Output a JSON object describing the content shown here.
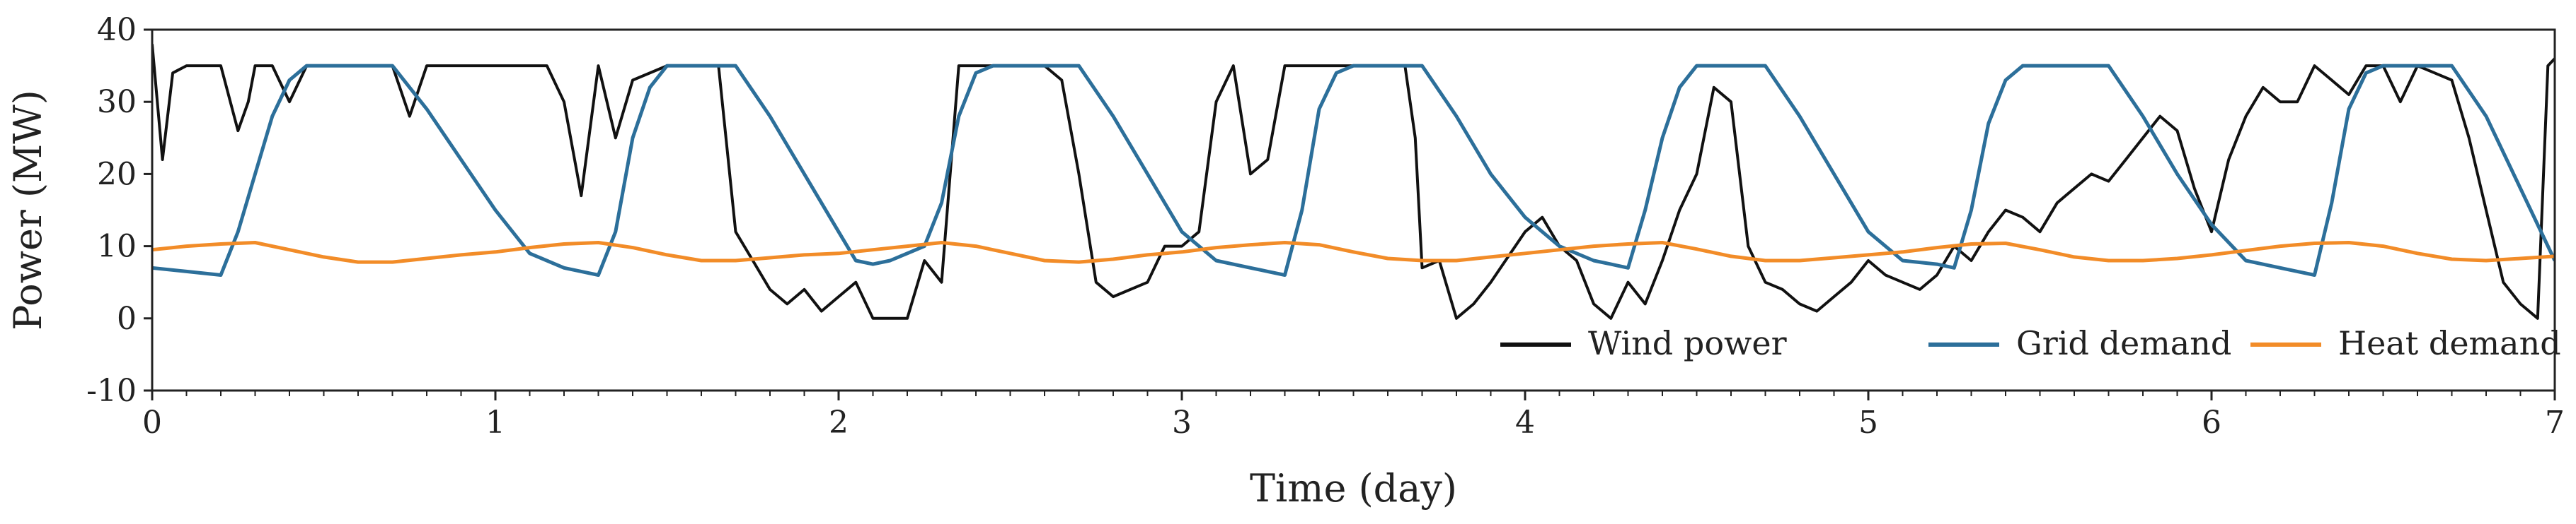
{
  "chart_data": {
    "type": "line",
    "xlabel": "Time (day)",
    "ylabel": "Power (MW)",
    "xlim": [
      0,
      7
    ],
    "ylim": [
      -10,
      40
    ],
    "xticks": [
      0,
      1,
      2,
      3,
      4,
      5,
      6,
      7
    ],
    "xtick_labels": [
      "0",
      "1",
      "2",
      "3",
      "4",
      "5",
      "6",
      "7"
    ],
    "yticks": [
      -10,
      0,
      10,
      20,
      30,
      40
    ],
    "ytick_labels": [
      "-10",
      "0",
      "10",
      "20",
      "30",
      "40"
    ],
    "grid": false,
    "legend_position": "bottom-right",
    "series": [
      {
        "name": "Wind power",
        "color": "#111111",
        "x": [
          0,
          0.03,
          0.06,
          0.1,
          0.2,
          0.25,
          0.28,
          0.3,
          0.35,
          0.4,
          0.45,
          0.5,
          0.6,
          0.7,
          0.75,
          0.8,
          0.9,
          1.0,
          1.05,
          1.1,
          1.15,
          1.2,
          1.25,
          1.3,
          1.35,
          1.4,
          1.5,
          1.6,
          1.65,
          1.7,
          1.75,
          1.8,
          1.85,
          1.9,
          1.95,
          2.0,
          2.05,
          2.1,
          2.15,
          2.2,
          2.25,
          2.3,
          2.35,
          2.4,
          2.5,
          2.6,
          2.65,
          2.7,
          2.75,
          2.8,
          2.85,
          2.9,
          2.95,
          3.0,
          3.05,
          3.1,
          3.15,
          3.2,
          3.25,
          3.3,
          3.35,
          3.4,
          3.5,
          3.6,
          3.65,
          3.68,
          3.7,
          3.75,
          3.8,
          3.85,
          3.9,
          4.0,
          4.05,
          4.1,
          4.15,
          4.2,
          4.25,
          4.3,
          4.35,
          4.4,
          4.45,
          4.5,
          4.55,
          4.6,
          4.65,
          4.7,
          4.75,
          4.8,
          4.85,
          4.9,
          4.95,
          5.0,
          5.05,
          5.1,
          5.15,
          5.2,
          5.25,
          5.3,
          5.35,
          5.4,
          5.45,
          5.5,
          5.55,
          5.6,
          5.65,
          5.7,
          5.75,
          5.8,
          5.85,
          5.9,
          5.95,
          6.0,
          6.05,
          6.1,
          6.15,
          6.2,
          6.25,
          6.3,
          6.35,
          6.4,
          6.45,
          6.5,
          6.55,
          6.6,
          6.65,
          6.7,
          6.75,
          6.8,
          6.85,
          6.9,
          6.95,
          6.98,
          7.0
        ],
        "y": [
          38,
          22,
          34,
          35,
          35,
          26,
          30,
          35,
          35,
          30,
          35,
          35,
          35,
          35,
          28,
          35,
          35,
          35,
          35,
          35,
          35,
          30,
          17,
          35,
          25,
          33,
          35,
          35,
          35,
          12,
          8,
          4,
          2,
          4,
          1,
          3,
          5,
          0,
          0,
          0,
          8,
          5,
          35,
          35,
          35,
          35,
          33,
          20,
          5,
          3,
          4,
          5,
          10,
          10,
          12,
          30,
          35,
          20,
          22,
          35,
          35,
          35,
          35,
          35,
          35,
          25,
          7,
          8,
          0,
          2,
          5,
          12,
          14,
          10,
          8,
          2,
          0,
          5,
          2,
          8,
          15,
          20,
          32,
          30,
          10,
          5,
          4,
          2,
          1,
          3,
          5,
          8,
          6,
          5,
          4,
          6,
          10,
          8,
          12,
          15,
          14,
          12,
          16,
          18,
          20,
          19,
          22,
          25,
          28,
          26,
          18,
          12,
          22,
          28,
          32,
          30,
          30,
          35,
          33,
          31,
          35,
          35,
          30,
          35,
          34,
          33,
          25,
          15,
          5,
          2,
          0,
          35,
          36
        ]
      },
      {
        "name": "Grid demand",
        "color": "#2C6F9A",
        "x": [
          0,
          0.1,
          0.2,
          0.25,
          0.3,
          0.35,
          0.4,
          0.45,
          0.5,
          0.55,
          0.6,
          0.65,
          0.7,
          0.8,
          0.9,
          1.0,
          1.1,
          1.2,
          1.25,
          1.3,
          1.35,
          1.4,
          1.45,
          1.5,
          1.55,
          1.6,
          1.65,
          1.7,
          1.8,
          1.9,
          2.0,
          2.05,
          2.1,
          2.15,
          2.2,
          2.25,
          2.3,
          2.35,
          2.4,
          2.45,
          2.5,
          2.55,
          2.6,
          2.65,
          2.7,
          2.8,
          2.9,
          3.0,
          3.1,
          3.2,
          3.25,
          3.3,
          3.35,
          3.4,
          3.45,
          3.5,
          3.55,
          3.6,
          3.65,
          3.7,
          3.8,
          3.9,
          4.0,
          4.1,
          4.2,
          4.25,
          4.3,
          4.35,
          4.4,
          4.45,
          4.5,
          4.55,
          4.6,
          4.65,
          4.7,
          4.8,
          4.9,
          5.0,
          5.1,
          5.2,
          5.25,
          5.3,
          5.35,
          5.4,
          5.45,
          5.5,
          5.55,
          5.6,
          5.65,
          5.7,
          5.8,
          5.9,
          6.0,
          6.1,
          6.2,
          6.25,
          6.3,
          6.35,
          6.4,
          6.45,
          6.5,
          6.55,
          6.6,
          6.65,
          6.7,
          6.8,
          6.9,
          7.0
        ],
        "y": [
          7,
          6.5,
          6,
          12,
          20,
          28,
          33,
          35,
          35,
          35,
          35,
          35,
          35,
          29,
          22,
          15,
          9,
          7,
          6.5,
          6,
          12,
          25,
          32,
          35,
          35,
          35,
          35,
          35,
          28,
          20,
          12,
          8,
          7.5,
          8,
          9,
          10,
          16,
          28,
          34,
          35,
          35,
          35,
          35,
          35,
          35,
          28,
          20,
          12,
          8,
          7,
          6.5,
          6,
          15,
          29,
          34,
          35,
          35,
          35,
          35,
          35,
          28,
          20,
          14,
          10,
          8,
          7.5,
          7,
          15,
          25,
          32,
          35,
          35,
          35,
          35,
          35,
          28,
          20,
          12,
          8,
          7.5,
          7,
          15,
          27,
          33,
          35,
          35,
          35,
          35,
          35,
          35,
          28,
          20,
          13,
          8,
          7,
          6.5,
          6,
          16,
          29,
          34,
          35,
          35,
          35,
          35,
          35,
          28,
          18,
          8
        ]
      },
      {
        "name": "Heat demand",
        "color": "#F28C28",
        "x": [
          0,
          0.1,
          0.2,
          0.3,
          0.4,
          0.5,
          0.6,
          0.7,
          0.8,
          0.9,
          1.0,
          1.1,
          1.2,
          1.3,
          1.4,
          1.5,
          1.6,
          1.7,
          1.8,
          1.9,
          2.0,
          2.1,
          2.2,
          2.3,
          2.4,
          2.5,
          2.6,
          2.7,
          2.8,
          2.9,
          3.0,
          3.1,
          3.2,
          3.3,
          3.4,
          3.5,
          3.6,
          3.7,
          3.8,
          3.9,
          4.0,
          4.1,
          4.2,
          4.3,
          4.4,
          4.5,
          4.6,
          4.7,
          4.8,
          4.9,
          5.0,
          5.1,
          5.2,
          5.3,
          5.4,
          5.5,
          5.6,
          5.7,
          5.8,
          5.9,
          6.0,
          6.1,
          6.2,
          6.3,
          6.4,
          6.5,
          6.6,
          6.7,
          6.8,
          6.9,
          7.0
        ],
        "y": [
          9.5,
          10,
          10.3,
          10.5,
          9.5,
          8.5,
          7.8,
          7.8,
          8.3,
          8.8,
          9.2,
          9.8,
          10.3,
          10.5,
          9.8,
          8.8,
          8.0,
          8.0,
          8.4,
          8.8,
          9.0,
          9.5,
          10.0,
          10.5,
          10.0,
          9.0,
          8.0,
          7.8,
          8.2,
          8.8,
          9.2,
          9.8,
          10.2,
          10.5,
          10.2,
          9.2,
          8.3,
          8.0,
          8.0,
          8.5,
          9.0,
          9.5,
          10.0,
          10.3,
          10.5,
          9.6,
          8.6,
          8.0,
          8.0,
          8.4,
          8.8,
          9.2,
          9.8,
          10.3,
          10.4,
          9.5,
          8.5,
          8.0,
          8.0,
          8.3,
          8.8,
          9.4,
          10.0,
          10.4,
          10.5,
          10.0,
          9.0,
          8.2,
          8.0,
          8.3,
          8.6
        ]
      }
    ]
  }
}
